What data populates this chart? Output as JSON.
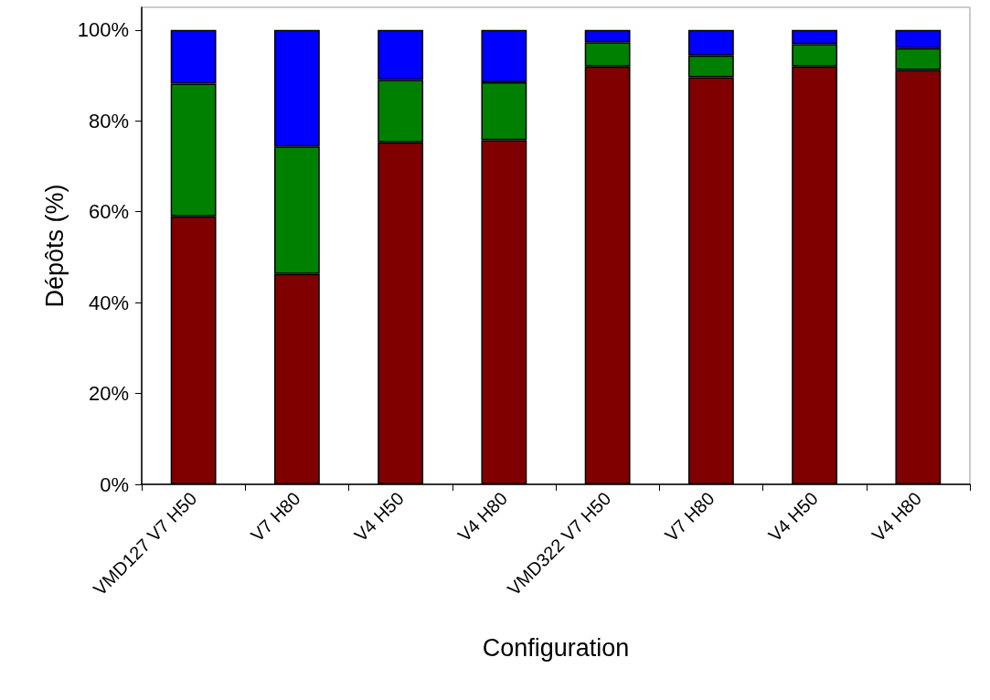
{
  "chart_data": {
    "type": "bar",
    "stacked": true,
    "xlabel": "Configuration",
    "ylabel": "Dépôts (%)",
    "categories": [
      "VMD127 V7 H50",
      "V7 H80",
      "V4 H50",
      "V4 H80",
      "VMD322 V7 H50",
      "V7 H80",
      "V4 H50",
      "V4 H80"
    ],
    "series": [
      {
        "color": "#800000",
        "values": [
          59.0,
          46.3,
          75.3,
          75.8,
          92.0,
          89.6,
          92.0,
          91.2
        ]
      },
      {
        "color": "#008000",
        "values": [
          29.2,
          28.1,
          13.7,
          12.7,
          5.3,
          4.8,
          4.9,
          4.8
        ]
      },
      {
        "color": "#0000ff",
        "values": [
          11.8,
          25.6,
          11.0,
          11.5,
          2.7,
          5.6,
          3.1,
          4.0
        ]
      }
    ],
    "ylim": [
      0,
      105
    ],
    "yticks": [
      {
        "value": 0,
        "label": "0%"
      },
      {
        "value": 20,
        "label": "20%"
      },
      {
        "value": 40,
        "label": "40%"
      },
      {
        "value": 60,
        "label": "60%"
      },
      {
        "value": 80,
        "label": "80%"
      },
      {
        "value": 100,
        "label": "100%"
      }
    ],
    "grid": false
  }
}
